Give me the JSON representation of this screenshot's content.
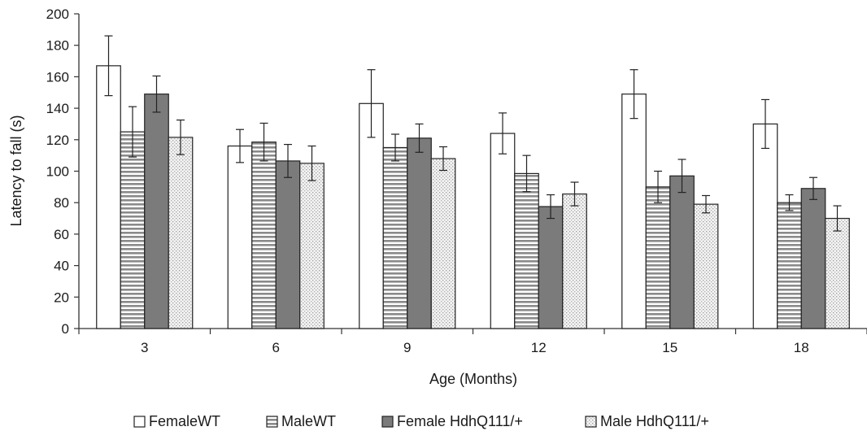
{
  "chart_data": {
    "type": "bar",
    "xlabel": "Age (Months)",
    "ylabel": "Latency to fall (s)",
    "ylim": [
      0,
      200
    ],
    "yticks": [
      0,
      20,
      40,
      60,
      80,
      100,
      120,
      140,
      160,
      180,
      200
    ],
    "categories": [
      "3",
      "6",
      "9",
      "12",
      "15",
      "18"
    ],
    "grid": false,
    "legend_position": "bottom",
    "series": [
      {
        "name": "FemaleWT",
        "pattern": "white",
        "values": [
          167,
          116,
          143,
          124,
          149,
          130
        ],
        "errors": [
          19,
          10.5,
          21.5,
          13,
          15.5,
          15.5
        ]
      },
      {
        "name": "MaleWT",
        "pattern": "horizontal-stripes",
        "values": [
          125,
          118.5,
          115,
          98.5,
          90,
          80
        ],
        "errors": [
          16,
          12,
          8.5,
          11.5,
          10,
          5
        ]
      },
      {
        "name": "Female HdhQ111/+",
        "pattern": "dark-gray",
        "values": [
          149,
          106.5,
          121,
          77.5,
          97,
          89
        ],
        "errors": [
          11.5,
          10.5,
          9,
          7.5,
          10.5,
          7
        ]
      },
      {
        "name": "Male HdhQ111/+",
        "pattern": "dotted",
        "values": [
          121.5,
          105,
          108,
          85.5,
          79,
          70
        ],
        "errors": [
          11,
          11,
          7.5,
          7.5,
          5.5,
          8
        ]
      }
    ]
  }
}
